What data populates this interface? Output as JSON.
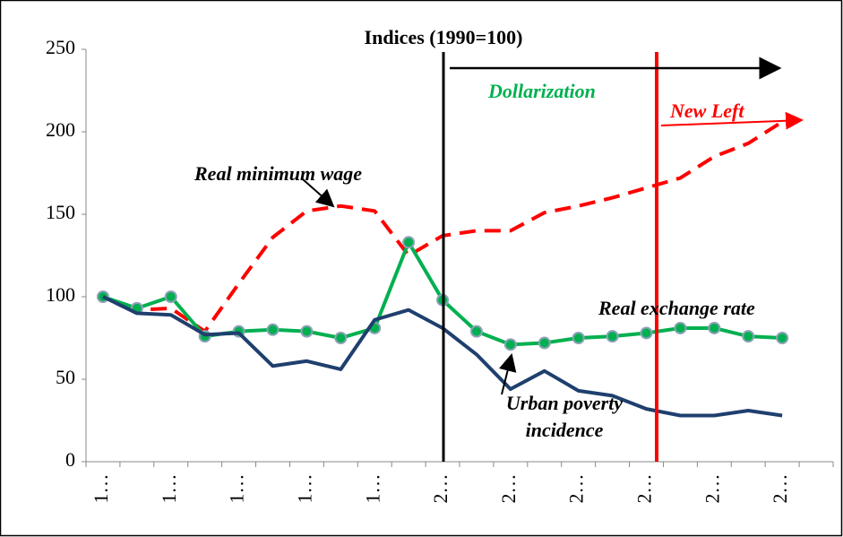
{
  "chart_data": {
    "type": "line",
    "title": "Indices (1990=100)",
    "categories": [
      "1…",
      null,
      "1…",
      null,
      "1…",
      null,
      "1…",
      null,
      "1…",
      null,
      "2…",
      null,
      "2…",
      null,
      "2…",
      null,
      "2…",
      null,
      "2…",
      null,
      "2…",
      null
    ],
    "series": [
      {
        "name": "Real minimum wage",
        "color": "#ff0000",
        "dash": true,
        "markers": false,
        "values": [
          100,
          92,
          93,
          79,
          108,
          136,
          152,
          155,
          152,
          125,
          137,
          140,
          140,
          151,
          155,
          160,
          166,
          172,
          185,
          193,
          206,
          null
        ]
      },
      {
        "name": "Real exchange rate",
        "color": "#00b050",
        "dash": false,
        "markers": true,
        "values": [
          100,
          93,
          100,
          76,
          79,
          80,
          79,
          75,
          81,
          133,
          98,
          79,
          71,
          72,
          75,
          76,
          78,
          81,
          81,
          76,
          75,
          null
        ]
      },
      {
        "name": "Urban poverty incidence",
        "color": "#1f3f6e",
        "dash": false,
        "markers": false,
        "values": [
          100,
          90,
          89,
          77,
          78,
          58,
          61,
          56,
          86,
          92,
          81,
          65,
          44,
          55,
          43,
          40,
          32,
          28,
          28,
          31,
          28,
          null
        ]
      }
    ],
    "annotations": [
      "Dollarization",
      "New Left",
      "Real minimum wage",
      "Real exchange rate",
      "Urban poverty",
      "incidence"
    ],
    "ylim": [
      0,
      250
    ],
    "yticks": [
      0,
      50,
      100,
      150,
      200,
      250
    ],
    "grid": false
  }
}
